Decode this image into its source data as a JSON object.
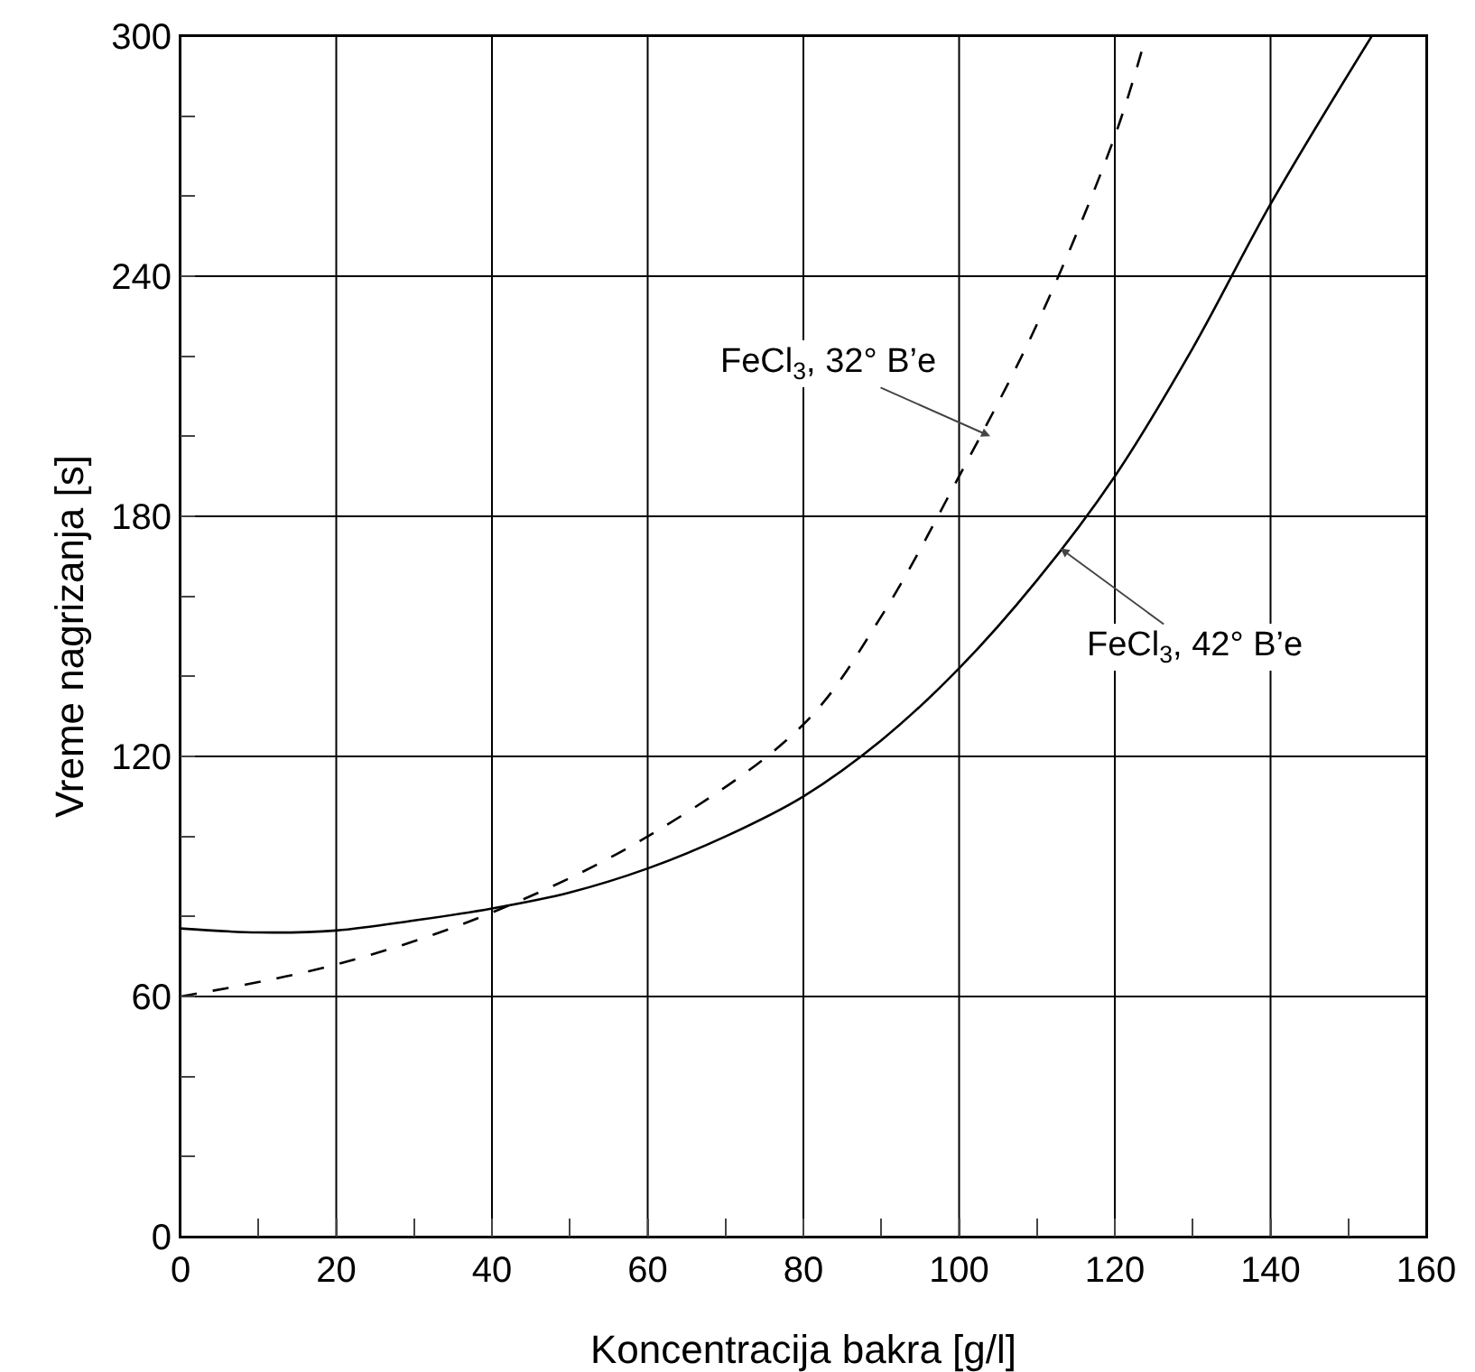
{
  "chart_data": {
    "type": "line",
    "xlabel": "Koncentracija bakra [g/l]",
    "ylabel": "Vreme nagrizanja [s]",
    "xlim": [
      0,
      160
    ],
    "ylim": [
      0,
      300
    ],
    "xticks": [
      0,
      {
        "value": 10,
        "label": null
      },
      20,
      {
        "value": 30,
        "label": null
      },
      40,
      {
        "value": 50,
        "label": null
      },
      60,
      {
        "value": 70,
        "label": null
      },
      80,
      {
        "value": 90,
        "label": null
      },
      100,
      {
        "value": 110,
        "label": null
      },
      120,
      {
        "value": 130,
        "label": null
      },
      140,
      {
        "value": 150,
        "label": null
      },
      160
    ],
    "yticks": [
      0,
      {
        "value": 20,
        "label": null
      },
      {
        "value": 40,
        "label": null
      },
      60,
      {
        "value": 80,
        "label": null
      },
      {
        "value": 100,
        "label": null
      },
      120,
      {
        "value": 140,
        "label": null
      },
      {
        "value": 160,
        "label": null
      },
      180,
      {
        "value": 200,
        "label": null
      },
      {
        "value": 220,
        "label": null
      },
      240,
      {
        "value": 260,
        "label": null
      },
      {
        "value": 280,
        "label": null
      },
      300
    ],
    "grid": true,
    "marker": "none",
    "series": [
      {
        "color": "#000000",
        "line_style": "solid",
        "x": [
          0,
          10,
          20,
          30,
          40,
          50,
          60,
          70,
          80,
          90,
          100,
          110,
          120,
          130,
          140,
          153
        ],
        "values": [
          77,
          76,
          76.5,
          79,
          82,
          86,
          92,
          100,
          110,
          124,
          142,
          164,
          190,
          222,
          258,
          300
        ]
      },
      {
        "color": "#000000",
        "line_style": "dashed",
        "x": [
          0,
          20,
          40,
          60,
          80,
          90,
          100,
          110,
          120,
          124
        ],
        "values": [
          60,
          68,
          81,
          100,
          128,
          155,
          190,
          228,
          275,
          300
        ]
      }
    ],
    "annotations": [
      {
        "text": "FeCl$_{3}$, 32° B’e",
        "x": 104,
        "y": 200
      },
      {
        "text": "FeCl$_{3}$, 42° B’e",
        "x": 113,
        "y": 172
      }
    ]
  }
}
